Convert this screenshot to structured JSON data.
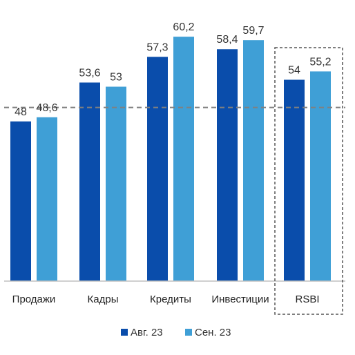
{
  "chart_data": {
    "type": "bar",
    "categories": [
      "Продажи",
      "Кадры",
      "Кредиты",
      "Инвестиции",
      "RSBI"
    ],
    "series": [
      {
        "name": "Авг. 23",
        "values": [
          48,
          53.6,
          57.3,
          58.4,
          54
        ],
        "labels": [
          "48",
          "53,6",
          "57,3",
          "58,4",
          "54"
        ],
        "color": "#0a4dab"
      },
      {
        "name": "Сен. 23",
        "values": [
          48.6,
          53,
          60.2,
          59.7,
          55.2
        ],
        "labels": [
          "48,6",
          "53",
          "60,2",
          "59,7",
          "55,2"
        ],
        "color": "#3f9fd6"
      }
    ],
    "ylim": [
      25,
      63
    ],
    "reference_line": 50,
    "highlighted_category": "RSBI",
    "grid": false,
    "legend_position": "bottom"
  }
}
